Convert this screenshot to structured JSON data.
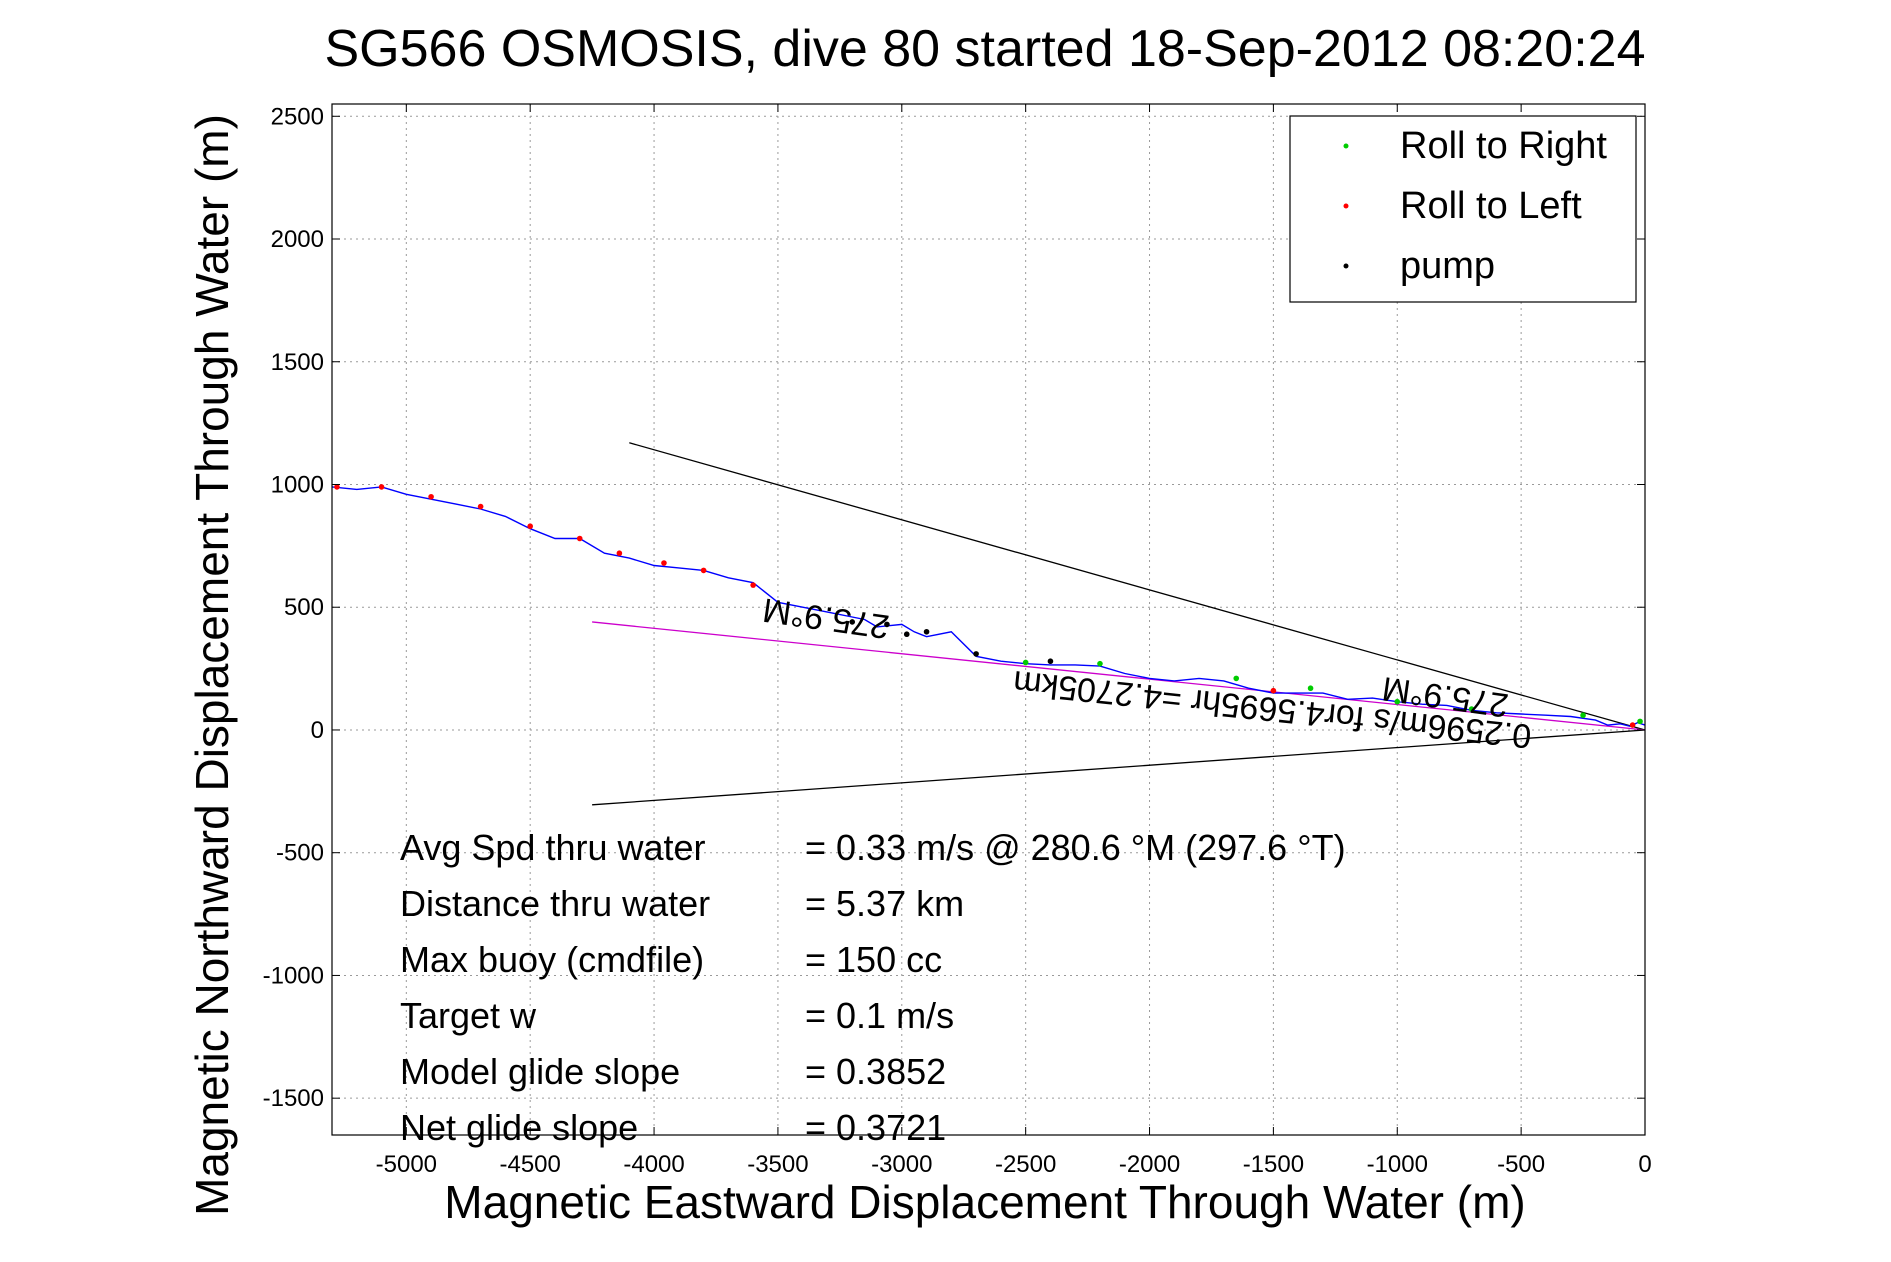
{
  "chart_data": {
    "type": "line",
    "title": "SG566 OSMOSIS, dive 80 started 18-Sep-2012 08:20:24",
    "xlabel": "Magnetic Eastward Displacement Through Water (m)",
    "ylabel": "Magnetic Northward Displacement Through Water (m)",
    "xlim": [
      -5300,
      0
    ],
    "ylim": [
      -1650,
      2550
    ],
    "xticks": [
      -5000,
      -4500,
      -4000,
      -3500,
      -3000,
      -2500,
      -2000,
      -1500,
      -1000,
      -500,
      0
    ],
    "yticks": [
      2500,
      2000,
      1500,
      1000,
      500,
      0,
      -500,
      -1000,
      -1500
    ],
    "grid": true,
    "legend_position": "top-right",
    "legend": [
      {
        "label": "Roll to Right",
        "color": "#00cc00"
      },
      {
        "label": "Roll to Left",
        "color": "#ff0000"
      },
      {
        "label": "pump",
        "color": "#000000"
      }
    ],
    "track": {
      "color": "#0000ff",
      "x": [
        0,
        -30,
        -60,
        -100,
        -150,
        -200,
        -300,
        -400,
        -500,
        -600,
        -700,
        -800,
        -900,
        -1000,
        -1100,
        -1200,
        -1300,
        -1400,
        -1500,
        -1600,
        -1700,
        -1800,
        -1900,
        -2000,
        -2100,
        -2200,
        -2300,
        -2400,
        -2500,
        -2600,
        -2700,
        -2800,
        -2900,
        -2950,
        -3000,
        -3100,
        -3150,
        -3200,
        -3300,
        -3400,
        -3500,
        -3600,
        -3700,
        -3800,
        -3900,
        -4000,
        -4100,
        -4200,
        -4300,
        -4400,
        -4500,
        -4600,
        -4700,
        -4800,
        -4900,
        -5000,
        -5100,
        -5200,
        -5300
      ],
      "y": [
        20,
        30,
        15,
        25,
        20,
        40,
        55,
        60,
        65,
        70,
        80,
        100,
        105,
        115,
        130,
        125,
        150,
        150,
        150,
        170,
        200,
        210,
        200,
        210,
        230,
        260,
        265,
        265,
        270,
        280,
        300,
        400,
        380,
        400,
        430,
        420,
        450,
        460,
        480,
        500,
        520,
        600,
        620,
        650,
        660,
        670,
        700,
        720,
        780,
        780,
        820,
        870,
        900,
        920,
        940,
        960,
        990,
        980,
        990
      ]
    },
    "roll_right_points": {
      "x": [
        -20,
        -250,
        -700,
        -1000,
        -1350,
        -1650,
        -2200,
        -2500
      ],
      "y": [
        35,
        60,
        85,
        115,
        170,
        210,
        270,
        275
      ]
    },
    "roll_left_points": {
      "x": [
        -50,
        -1500,
        -3600,
        -3800,
        -3960,
        -4140,
        -4300,
        -4500,
        -4700,
        -4900,
        -5100,
        -5280
      ],
      "y": [
        20,
        160,
        590,
        650,
        680,
        720,
        780,
        830,
        910,
        950,
        990,
        990
      ]
    },
    "pump_points": {
      "x": [
        -2700,
        -2900,
        -2980,
        -3060,
        -3200,
        -2400
      ],
      "y": [
        310,
        400,
        390,
        430,
        440,
        280
      ]
    },
    "lines": [
      {
        "name": "cone-upper",
        "color": "#000000",
        "x": [
          0,
          -4100
        ],
        "y": [
          0,
          1170
        ]
      },
      {
        "name": "cone-lower",
        "color": "#000000",
        "x": [
          0,
          -4250
        ],
        "y": [
          0,
          -305
        ]
      },
      {
        "name": "heading",
        "color": "#cc00cc",
        "x": [
          0,
          -4250
        ],
        "y": [
          0,
          440
        ]
      }
    ],
    "annotations": [
      {
        "text": "275.9°M",
        "x": -3300,
        "y": 500,
        "rotation": 188
      },
      {
        "text": "0.2596m/s for4.5695hr =4.2705km",
        "x": -1500,
        "y": 130,
        "rotation": 186
      },
      {
        "text": "275.9°M",
        "x": -800,
        "y": 180,
        "rotation": 188
      }
    ],
    "stats": [
      {
        "label": "Avg Spd thru water",
        "value": "=  0.33 m/s @ 280.6 °M (297.6 °T)"
      },
      {
        "label": "Distance thru water",
        "value": "=  5.37 km"
      },
      {
        "label": "Max buoy (cmdfile)",
        "value": "= 150 cc"
      },
      {
        "label": "Target w",
        "value": "= 0.1 m/s"
      },
      {
        "label": "Model glide slope",
        "value": "= 0.3852"
      },
      {
        "label": "Net glide slope",
        "value": "= 0.3721"
      }
    ]
  }
}
